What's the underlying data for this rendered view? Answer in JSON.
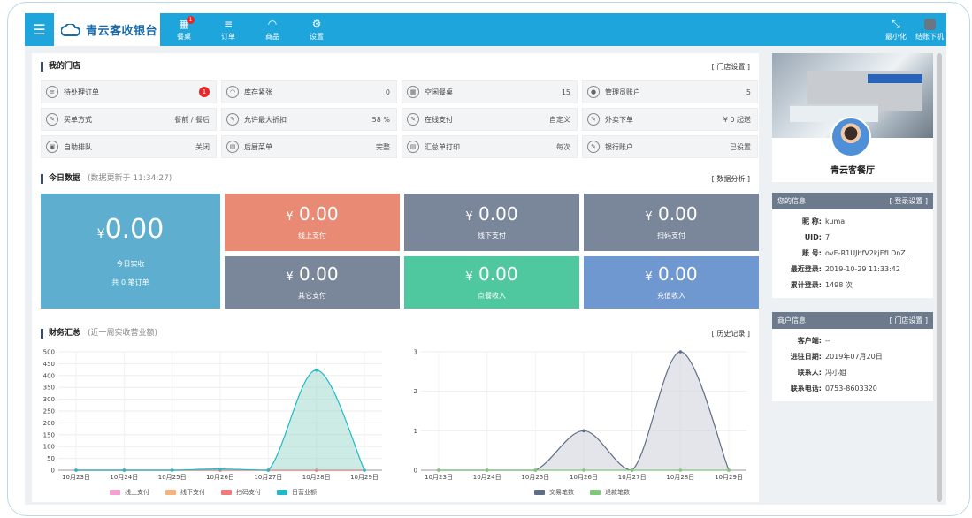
{
  "app": {
    "title": "青云客收银台"
  },
  "nav": {
    "items": [
      {
        "label": "餐桌",
        "badge": "1",
        "icon": "grid-icon"
      },
      {
        "label": "订单",
        "icon": "list-icon"
      },
      {
        "label": "商品",
        "icon": "cloche-icon"
      },
      {
        "label": "设置",
        "icon": "gear-icon"
      }
    ],
    "minimize": "最小化",
    "logout": "结账下机"
  },
  "store": {
    "title": "我的门店",
    "link": "[ 门店设置 ]",
    "cells": [
      {
        "label": "待处理订单",
        "value": "1",
        "icon": "list-icon",
        "badge": true
      },
      {
        "label": "库存紧张",
        "value": "0",
        "icon": "cloche-icon"
      },
      {
        "label": "空闲餐桌",
        "value": "15",
        "icon": "grid-icon"
      },
      {
        "label": "管理员账户",
        "value": "5",
        "icon": "user-icon"
      },
      {
        "label": "买单方式",
        "value": "餐前 / 餐后",
        "icon": "edit-icon"
      },
      {
        "label": "允许最大折扣",
        "value": "58 %",
        "icon": "edit-icon"
      },
      {
        "label": "在线支付",
        "value": "自定义",
        "icon": "edit-icon"
      },
      {
        "label": "外卖下单",
        "value": "¥ 0 起送",
        "icon": "edit-icon"
      },
      {
        "label": "自助排队",
        "value": "关闭",
        "icon": "lock-icon"
      },
      {
        "label": "后厨菜单",
        "value": "完整",
        "icon": "doc-icon"
      },
      {
        "label": "汇总单打印",
        "value": "每次",
        "icon": "doc-icon"
      },
      {
        "label": "银行账户",
        "value": "已设置",
        "icon": "edit-icon"
      }
    ]
  },
  "today": {
    "title": "今日数据",
    "subtitle": "(数据更新于 11:34:27)",
    "link": "[ 数据分析 ]",
    "main": {
      "currency": "¥",
      "amount": "0.00",
      "label": "今日实收",
      "orders": "共 0 笔订单"
    },
    "tiles": [
      {
        "currency": "¥",
        "amount": "0.00",
        "label": "线上支付",
        "color": "#e98a74"
      },
      {
        "currency": "¥",
        "amount": "0.00",
        "label": "线下支付",
        "color": "#7a879a"
      },
      {
        "currency": "¥",
        "amount": "0.00",
        "label": "扫码支付",
        "color": "#7a879a"
      },
      {
        "currency": "¥",
        "amount": "0.00",
        "label": "其它支付",
        "color": "#7a879a"
      },
      {
        "currency": "¥",
        "amount": "0.00",
        "label": "点餐收入",
        "color": "#4fc89f"
      },
      {
        "currency": "¥",
        "amount": "0.00",
        "label": "充值收入",
        "color": "#6f98d1"
      }
    ]
  },
  "finance": {
    "title": "财务汇总",
    "subtitle": "(近一周实收营业额)",
    "link": "[ 历史记录 ]"
  },
  "chart_data": [
    {
      "type": "area",
      "categories": [
        "10月23日",
        "10月24日",
        "10月25日",
        "10月26日",
        "10月27日",
        "10月28日",
        "10月29日"
      ],
      "ylim": [
        0,
        500
      ],
      "yticks": [
        0,
        50,
        100,
        150,
        200,
        250,
        300,
        350,
        400,
        450,
        500
      ],
      "series": [
        {
          "name": "线上支付",
          "color": "#f0a3cf",
          "values": [
            0,
            0,
            0,
            0,
            0,
            0,
            0
          ]
        },
        {
          "name": "线下支付",
          "color": "#f5b27a",
          "values": [
            0,
            0,
            0,
            0,
            0,
            0,
            0
          ]
        },
        {
          "name": "扫码支付",
          "color": "#ef7a7a",
          "values": [
            0,
            0,
            0,
            0,
            0,
            0,
            0
          ]
        },
        {
          "name": "日营业额",
          "color": "#1fb9c8",
          "values": [
            0,
            0,
            0,
            5,
            0,
            423,
            0
          ]
        }
      ]
    },
    {
      "type": "area",
      "categories": [
        "10月23日",
        "10月24日",
        "10月25日",
        "10月26日",
        "10月27日",
        "10月28日",
        "10月29日"
      ],
      "ylim": [
        0,
        3
      ],
      "yticks": [
        0,
        1,
        2,
        3
      ],
      "series": [
        {
          "name": "交易笔数",
          "color": "#5e6e87",
          "values": [
            0,
            0,
            0,
            1,
            0,
            3,
            0
          ]
        },
        {
          "name": "退款笔数",
          "color": "#7fc77a",
          "values": [
            0,
            0,
            0,
            0,
            0,
            0,
            0
          ]
        }
      ]
    }
  ],
  "side": {
    "store_name": "青云客餐厅",
    "user": {
      "title": "您的信息",
      "link": "[ 登录设置 ]",
      "rows": [
        {
          "k": "昵 称:",
          "v": "kuma"
        },
        {
          "k": "UID:",
          "v": "7"
        },
        {
          "k": "账 号:",
          "v": "ovE-R1UJbfV2kjEfLDnZ..."
        },
        {
          "k": "最近登录:",
          "v": "2019-10-29 11:33:42"
        },
        {
          "k": "累计登录:",
          "v": "1498 次"
        }
      ]
    },
    "merchant": {
      "title": "商户信息",
      "link": "[ 门店设置 ]",
      "rows": [
        {
          "k": "客户端:",
          "v": "--"
        },
        {
          "k": "进驻日期:",
          "v": "2019年07月20日"
        },
        {
          "k": "联系人:",
          "v": "冯小姐"
        },
        {
          "k": "联系电话:",
          "v": "0753-8603320"
        }
      ]
    }
  }
}
